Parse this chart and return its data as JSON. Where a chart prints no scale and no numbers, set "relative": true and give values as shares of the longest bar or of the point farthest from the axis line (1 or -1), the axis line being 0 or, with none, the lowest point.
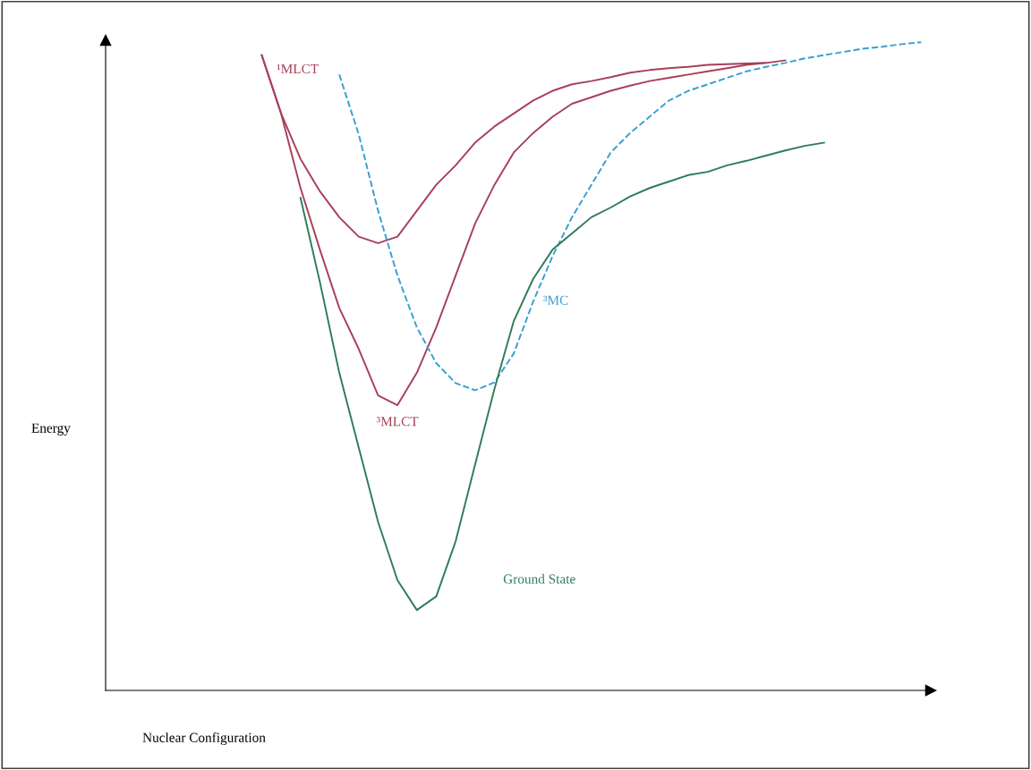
{
  "chart_data": {
    "type": "line",
    "relative": true,
    "xlabel": "Nuclear Configuration",
    "annotations": [
      "Energy"
    ],
    "legend": false,
    "marker": "none",
    "categories": [
      null,
      null,
      null,
      null,
      null,
      null,
      null,
      null,
      null,
      null,
      null,
      null,
      null,
      null,
      null,
      null,
      null,
      null,
      null,
      null,
      null,
      null,
      null,
      null,
      null,
      null,
      null,
      null,
      null,
      null,
      null,
      null,
      null,
      null,
      null
    ],
    "series": [
      {
        "name": "¹MLCT",
        "color": "#a8405a",
        "line_style": "solid",
        "values": [
          0.98,
          0.89,
          0.82,
          0.77,
          0.73,
          0.7,
          0.69,
          0.7,
          0.74,
          0.78,
          0.81,
          0.845,
          0.87,
          0.89,
          0.91,
          0.925,
          0.935,
          0.94,
          0.946,
          0.953,
          0.957,
          0.96,
          0.962,
          0.965,
          0.966,
          0.967,
          0.968,
          null,
          null,
          null,
          null,
          null,
          null,
          null,
          null
        ]
      },
      {
        "name": "³MLCT",
        "color": "#a8405a",
        "line_style": "solid",
        "values": [
          0.98,
          0.89,
          0.775,
          0.68,
          0.59,
          0.527,
          0.455,
          0.44,
          0.49,
          0.56,
          0.64,
          0.72,
          0.78,
          0.83,
          0.86,
          0.885,
          0.905,
          0.915,
          0.925,
          0.933,
          0.94,
          0.945,
          0.95,
          0.955,
          0.96,
          0.965,
          0.968,
          0.972,
          null,
          null,
          null,
          null,
          null,
          null,
          null
        ]
      },
      {
        "name": "³MC",
        "color": "#3a9fd0",
        "line_style": "dashed",
        "values": [
          null,
          null,
          null,
          null,
          0.95,
          0.858,
          0.74,
          0.64,
          0.56,
          0.505,
          0.474,
          0.463,
          0.475,
          0.52,
          0.6,
          0.67,
          0.73,
          0.78,
          0.83,
          0.86,
          0.885,
          0.91,
          0.925,
          0.935,
          0.945,
          0.955,
          0.962,
          0.968,
          0.975,
          0.98,
          0.985,
          0.99,
          0.993,
          0.997,
          1.0
        ]
      },
      {
        "name": "Ground State",
        "color": "#2e7d5a",
        "line_style": "solid",
        "values": [
          null,
          null,
          0.76,
          0.63,
          0.49,
          0.375,
          0.26,
          0.17,
          0.124,
          0.145,
          0.23,
          0.348,
          0.465,
          0.57,
          0.635,
          0.68,
          0.705,
          0.73,
          0.745,
          0.762,
          0.775,
          0.785,
          0.795,
          0.8,
          0.81,
          0.817,
          0.825,
          0.833,
          0.84,
          0.845,
          null,
          null,
          null,
          null,
          null
        ]
      }
    ]
  }
}
